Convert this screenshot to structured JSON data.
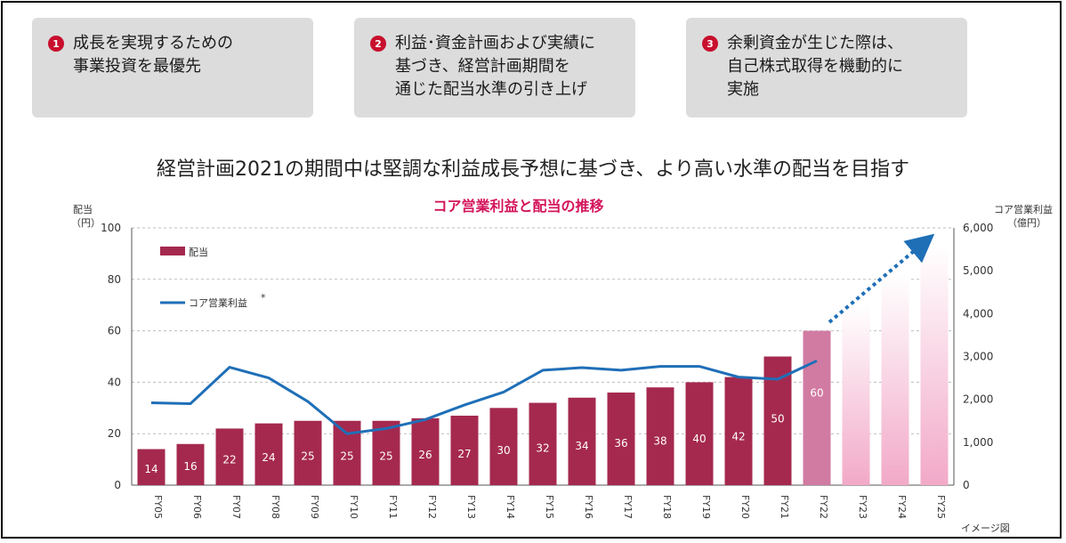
{
  "cards": [
    {
      "num": "1",
      "text": "成長を実現するための\n事業投資を最優先"
    },
    {
      "num": "2",
      "text": "利益･資金計画および実績に\n基づき、経営計画期間を\n通じた配当水準の引き上げ"
    },
    {
      "num": "3",
      "text": "余剰資金が生じた際は、\n自己株式取得を機動的に\n実施"
    }
  ],
  "headline": "経営計画2021の期間中は堅調な利益成長予想に基づき、より高い水準の配当を目指す",
  "chart_data": {
    "type": "bar",
    "title": "コア営業利益と配当の推移",
    "left_axis_label": [
      "配当",
      "（円）"
    ],
    "right_axis_label": [
      "コア営業利益",
      "（億円）"
    ],
    "note": "イメージ図",
    "ylim_left": [
      0,
      100
    ],
    "left_ticks": [
      "0",
      "20",
      "40",
      "60",
      "80",
      "100"
    ],
    "ylim_right": [
      0,
      6000
    ],
    "right_ticks": [
      "0",
      "1,000",
      "2,000",
      "3,000",
      "4,000",
      "5,000",
      "6,000"
    ],
    "categories": [
      "FY05",
      "FY06",
      "FY07",
      "FY08",
      "FY09",
      "FY10",
      "FY11",
      "FY12",
      "FY13",
      "FY14",
      "FY15",
      "FY16",
      "FY17",
      "FY18",
      "FY19",
      "FY20",
      "FY21",
      "FY22",
      "FY23",
      "FY24",
      "FY25"
    ],
    "series": [
      {
        "name": "配当",
        "axis": "left",
        "kind": "bar",
        "values": [
          14,
          16,
          22,
          24,
          25,
          25,
          25,
          26,
          27,
          30,
          32,
          34,
          36,
          38,
          40,
          42,
          50,
          60,
          null,
          null,
          null
        ],
        "labels": [
          "14",
          "16",
          "22",
          "24",
          "25",
          "25",
          "25",
          "26",
          "27",
          "30",
          "32",
          "34",
          "36",
          "38",
          "40",
          "42",
          "50",
          "60",
          "",
          "",
          ""
        ]
      },
      {
        "name": "コア営業利益",
        "marker": "*",
        "axis": "right",
        "kind": "line",
        "values": [
          1920,
          1900,
          2750,
          2500,
          1950,
          1200,
          1320,
          1530,
          1870,
          2170,
          2680,
          2740,
          2680,
          2770,
          2770,
          2520,
          2470,
          2900,
          null,
          null,
          null
        ]
      }
    ],
    "image_bars": [
      4200,
      4900,
      5600
    ],
    "colors": {
      "bar": "#a5294f",
      "bar_fy22": "#d17ba3",
      "line": "#1f6fb7",
      "image": "#f2a9c8",
      "title": "#d4145a"
    },
    "grid": true,
    "legend_position": "top-left"
  }
}
